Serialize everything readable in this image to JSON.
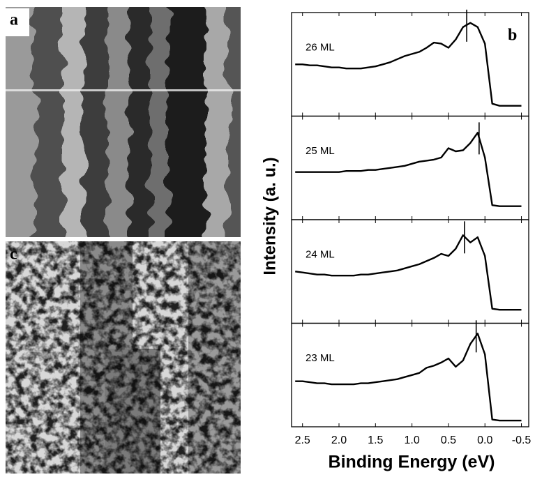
{
  "panel_labels": [
    "a",
    "b",
    "c"
  ],
  "chart_data": {
    "type": "line",
    "xlabel": "Binding Energy (eV)",
    "ylabel": "Intensity (a. u.)",
    "xlim": [
      2.65,
      -0.6
    ],
    "ylim": [
      0,
      1
    ],
    "xticks": [
      2.5,
      {
        "value": 2,
        "label": "2.0"
      },
      1.5,
      {
        "value": 1,
        "label": "1.0"
      },
      0.5,
      {
        "value": 0,
        "label": "0.0"
      },
      -0.5
    ],
    "x": [
      2.6,
      2.5,
      2.4,
      2.3,
      2.2,
      2.1,
      2,
      1.9,
      1.8,
      1.7,
      1.6,
      1.5,
      1.4,
      1.3,
      1.2,
      1.1,
      1,
      0.9,
      0.8,
      0.7,
      0.6,
      0.5,
      0.4,
      0.3,
      0.2,
      0.1,
      0,
      -0.1,
      -0.2,
      -0.3,
      -0.4,
      -0.5
    ],
    "series": [
      {
        "name": "26 ML",
        "color": "#000000",
        "marker": 0.25,
        "values": [
          0.5,
          0.5,
          0.49,
          0.49,
          0.48,
          0.47,
          0.47,
          0.46,
          0.46,
          0.46,
          0.47,
          0.48,
          0.5,
          0.52,
          0.55,
          0.58,
          0.6,
          0.62,
          0.66,
          0.71,
          0.7,
          0.66,
          0.74,
          0.86,
          0.9,
          0.86,
          0.7,
          0.12,
          0.1,
          0.1,
          0.1,
          0.1
        ]
      },
      {
        "name": "25 ML",
        "color": "#000000",
        "marker": 0.08,
        "values": [
          0.46,
          0.46,
          0.46,
          0.46,
          0.46,
          0.46,
          0.46,
          0.47,
          0.47,
          0.47,
          0.48,
          0.48,
          0.49,
          0.5,
          0.51,
          0.52,
          0.54,
          0.56,
          0.57,
          0.58,
          0.6,
          0.69,
          0.66,
          0.67,
          0.74,
          0.84,
          0.6,
          0.14,
          0.13,
          0.13,
          0.13,
          0.13
        ]
      },
      {
        "name": "24 ML",
        "color": "#000000",
        "marker": 0.28,
        "values": [
          0.5,
          0.49,
          0.48,
          0.47,
          0.47,
          0.46,
          0.46,
          0.46,
          0.46,
          0.47,
          0.47,
          0.48,
          0.49,
          0.5,
          0.51,
          0.53,
          0.55,
          0.57,
          0.6,
          0.63,
          0.67,
          0.65,
          0.72,
          0.85,
          0.78,
          0.83,
          0.65,
          0.14,
          0.13,
          0.13,
          0.13,
          0.13
        ]
      },
      {
        "name": "23 ML",
        "color": "#000000",
        "marker": 0.12,
        "values": [
          0.44,
          0.44,
          0.43,
          0.42,
          0.42,
          0.41,
          0.41,
          0.41,
          0.41,
          0.42,
          0.42,
          0.43,
          0.44,
          0.45,
          0.46,
          0.48,
          0.5,
          0.52,
          0.57,
          0.59,
          0.62,
          0.66,
          0.58,
          0.64,
          0.8,
          0.9,
          0.7,
          0.07,
          0.06,
          0.06,
          0.06,
          0.06
        ]
      }
    ]
  }
}
